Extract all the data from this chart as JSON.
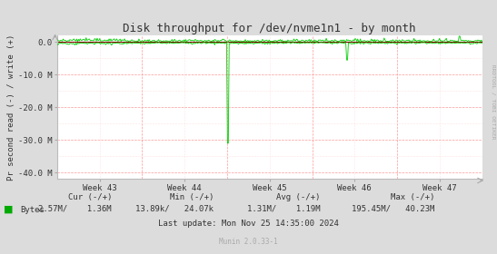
{
  "title": "Disk throughput for /dev/nvme1n1 - by month",
  "ylabel": "Pr second read (-) / write (+)",
  "xlabel_ticks": [
    "Week 43",
    "Week 44",
    "Week 45",
    "Week 46",
    "Week 47"
  ],
  "ytick_labels": [
    "-40.0 M",
    "-30.0 M",
    "-20.0 M",
    "-10.0 M",
    "0.0"
  ],
  "ytick_values": [
    -40000000,
    -30000000,
    -20000000,
    -10000000,
    0
  ],
  "ylim": [
    -42000000,
    2000000
  ],
  "xlim": [
    0,
    500
  ],
  "bg_color": "#dcdcdc",
  "plot_bg_color": "#ffffff",
  "grid_color_major": "#ff9999",
  "grid_color_minor": "#ffcccc",
  "line_color": "#00cc00",
  "zero_line_color": "#000000",
  "right_label": "RRDTOOL / TOBI OETIKER",
  "right_label_color": "#aaaaaa",
  "legend_label": "Bytes",
  "legend_color": "#00aa00",
  "footer_lastupdate": "Last update: Mon Nov 25 14:35:00 2024",
  "footer_munin": "Munin 2.0.33-1",
  "n_points": 500,
  "spike_x": 200,
  "spike_y": -31000000,
  "spike2_x": 340,
  "spike2_y": -5500000,
  "spike3_x": 472,
  "spike3_y": 1800000
}
